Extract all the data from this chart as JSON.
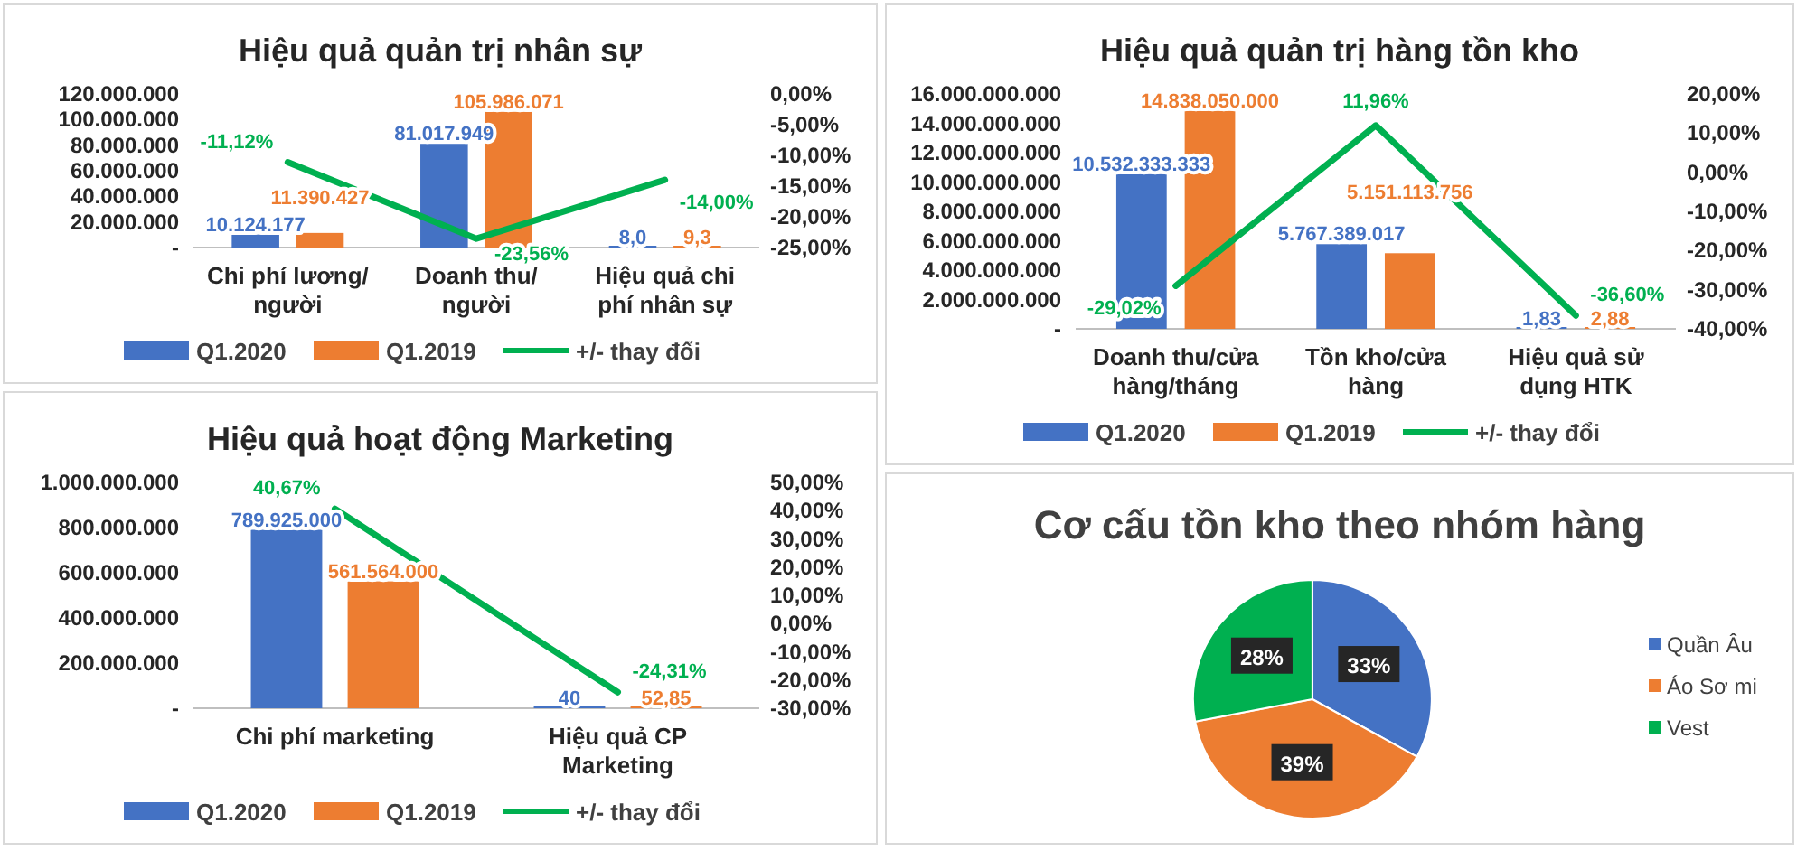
{
  "chart_data": [
    {
      "type": "bar",
      "title": "Hiệu quả quản trị nhân sự",
      "categories": [
        "Chi phí lương/ người",
        "Doanh thu/ người",
        "Hiệu quả chi phí nhân sự"
      ],
      "series": [
        {
          "name": "Q1.2020",
          "color": "#4472c4",
          "values": [
            10124177,
            81017949,
            8.0
          ],
          "value_labels": [
            "10.124.177",
            "81.017.949",
            "8,0"
          ]
        },
        {
          "name": "Q1.2019",
          "color": "#ed7d31",
          "values": [
            11390427,
            105986071,
            9.3
          ],
          "value_labels": [
            "11.390.427",
            "105.986.071",
            "9,3"
          ]
        },
        {
          "name": "+/- thay đổi",
          "type": "line",
          "axis": "y2",
          "color": "#00b050",
          "values": [
            -11.12,
            -23.56,
            -14.0
          ],
          "value_labels": [
            "-11,12%",
            "-23,56%",
            "-14,00%"
          ]
        }
      ],
      "ylim": [
        0,
        120000000
      ],
      "yticks": [
        {
          "value": 0,
          "label": "-"
        },
        {
          "value": 20000000,
          "label": "20.000.000"
        },
        {
          "value": 40000000,
          "label": "40.000.000"
        },
        {
          "value": 60000000,
          "label": "60.000.000"
        },
        {
          "value": 80000000,
          "label": "80.000.000"
        },
        {
          "value": 100000000,
          "label": "100.000.000"
        },
        {
          "value": 120000000,
          "label": "120.000.000"
        }
      ],
      "y2lim": [
        -25,
        0
      ],
      "y2ticks": [
        {
          "value": -25,
          "label": "-25,00%"
        },
        {
          "value": -20,
          "label": "-20,00%"
        },
        {
          "value": -15,
          "label": "-15,00%"
        },
        {
          "value": -10,
          "label": "-10,00%"
        },
        {
          "value": -5,
          "label": "-5,00%"
        },
        {
          "value": 0,
          "label": "0,00%"
        }
      ],
      "legend": "bottom",
      "grid": false
    },
    {
      "type": "bar",
      "title": "Hiệu quả quản trị hàng tồn kho",
      "categories": [
        "Doanh thu/cửa hàng/tháng",
        "Tồn kho/cửa hàng",
        "Hiệu quả sử dụng HTK"
      ],
      "series": [
        {
          "name": "Q1.2020",
          "color": "#4472c4",
          "values": [
            10532333333,
            5767389017,
            1.83
          ],
          "value_labels": [
            "10.532.333.333",
            "5.767.389.017",
            "1,83"
          ]
        },
        {
          "name": "Q1.2019",
          "color": "#ed7d31",
          "values": [
            14838050000,
            5151113756,
            2.88
          ],
          "value_labels": [
            "14.838.050.000",
            "5.151.113.756",
            "2,88"
          ]
        },
        {
          "name": "+/- thay đổi",
          "type": "line",
          "axis": "y2",
          "color": "#00b050",
          "values": [
            -29.02,
            11.96,
            -36.6
          ],
          "value_labels": [
            "-29,02%",
            "11,96%",
            "-36,60%"
          ]
        }
      ],
      "ylim": [
        0,
        16000000000
      ],
      "yticks": [
        {
          "value": 0,
          "label": "-"
        },
        {
          "value": 2000000000,
          "label": "2.000.000.000"
        },
        {
          "value": 4000000000,
          "label": "4.000.000.000"
        },
        {
          "value": 6000000000,
          "label": "6.000.000.000"
        },
        {
          "value": 8000000000,
          "label": "8.000.000.000"
        },
        {
          "value": 10000000000,
          "label": "10.000.000.000"
        },
        {
          "value": 12000000000,
          "label": "12.000.000.000"
        },
        {
          "value": 14000000000,
          "label": "14.000.000.000"
        },
        {
          "value": 16000000000,
          "label": "16.000.000.000"
        }
      ],
      "y2lim": [
        -40,
        20
      ],
      "y2ticks": [
        {
          "value": -40,
          "label": "-40,00%"
        },
        {
          "value": -30,
          "label": "-30,00%"
        },
        {
          "value": -20,
          "label": "-20,00%"
        },
        {
          "value": -10,
          "label": "-10,00%"
        },
        {
          "value": 0,
          "label": "0,00%"
        },
        {
          "value": 10,
          "label": "10,00%"
        },
        {
          "value": 20,
          "label": "20,00%"
        }
      ],
      "legend": "bottom",
      "grid": false
    },
    {
      "type": "bar",
      "title": "Hiệu quả hoạt động Marketing",
      "categories": [
        "Chi phí marketing",
        "Hiệu quả CP Marketing"
      ],
      "series": [
        {
          "name": "Q1.2020",
          "color": "#4472c4",
          "values": [
            789925000,
            40
          ],
          "value_labels": [
            "789.925.000",
            "40"
          ]
        },
        {
          "name": "Q1.2019",
          "color": "#ed7d31",
          "values": [
            561564000,
            52.85
          ],
          "value_labels": [
            "561.564.000",
            "52,85"
          ]
        },
        {
          "name": "+/- thay đổi",
          "type": "line",
          "axis": "y2",
          "color": "#00b050",
          "values": [
            40.67,
            -24.31
          ],
          "value_labels": [
            "40,67%",
            "-24,31%"
          ]
        }
      ],
      "ylim": [
        0,
        1000000000
      ],
      "yticks": [
        {
          "value": 0,
          "label": "-"
        },
        {
          "value": 200000000,
          "label": "200.000.000"
        },
        {
          "value": 400000000,
          "label": "400.000.000"
        },
        {
          "value": 600000000,
          "label": "600.000.000"
        },
        {
          "value": 800000000,
          "label": "800.000.000"
        },
        {
          "value": 1000000000,
          "label": "1.000.000.000"
        }
      ],
      "y2lim": [
        -30,
        50
      ],
      "y2ticks": [
        {
          "value": -30,
          "label": "-30,00%"
        },
        {
          "value": -20,
          "label": "-20,00%"
        },
        {
          "value": -10,
          "label": "-10,00%"
        },
        {
          "value": 0,
          "label": "0,00%"
        },
        {
          "value": 10,
          "label": "10,00%"
        },
        {
          "value": 20,
          "label": "20,00%"
        },
        {
          "value": 30,
          "label": "30,00%"
        },
        {
          "value": 40,
          "label": "40,00%"
        },
        {
          "value": 50,
          "label": "50,00%"
        }
      ],
      "legend": "bottom",
      "grid": false
    },
    {
      "type": "pie",
      "title": "Cơ cấu tồn kho theo nhóm hàng",
      "categories": [
        "Quần Âu",
        "Áo Sơ mi",
        "Vest"
      ],
      "values": [
        33,
        39,
        28
      ],
      "colors": [
        "#4472c4",
        "#ed7d31",
        "#00b050"
      ],
      "value_labels": [
        "33%",
        "39%",
        "28%"
      ],
      "legend": "right"
    }
  ]
}
